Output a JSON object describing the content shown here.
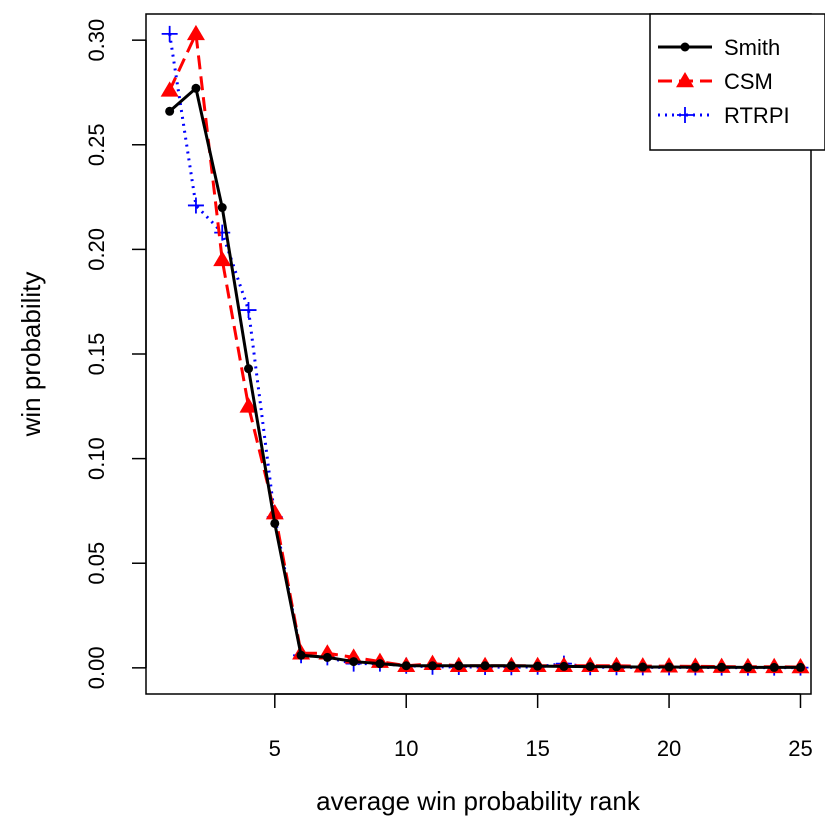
{
  "chart_data": {
    "type": "line",
    "xlabel": "average win probability rank",
    "ylabel": "win probability",
    "xlim": [
      0.1,
      25.4
    ],
    "ylim": [
      -0.0125,
      0.3125
    ],
    "x_ticks": [
      5,
      10,
      15,
      20,
      25
    ],
    "y_ticks": [
      "0.00",
      "0.05",
      "0.10",
      "0.15",
      "0.20",
      "0.25",
      "0.30"
    ],
    "grid": false,
    "legend_position": "top-right",
    "x": [
      1,
      2,
      3,
      4,
      5,
      6,
      7,
      8,
      9,
      10,
      11,
      12,
      13,
      14,
      15,
      16,
      17,
      18,
      19,
      20,
      21,
      22,
      23,
      24,
      25
    ],
    "series": [
      {
        "name": "Smith",
        "color": "#000000",
        "line_style": "solid",
        "marker": "filled-circle",
        "values": [
          0.266,
          0.277,
          0.22,
          0.143,
          0.069,
          0.006,
          0.005,
          0.003,
          0.002,
          0.001,
          0.001,
          0.001,
          0.001,
          0.001,
          0.0008,
          0.0007,
          0.0006,
          0.0005,
          0.0004,
          0.0004,
          0.0003,
          0.0003,
          0.0002,
          0.0002,
          0.0002
        ]
      },
      {
        "name": "CSM",
        "color": "#ff0000",
        "line_style": "dashed",
        "marker": "filled-triangle",
        "values": [
          0.276,
          0.303,
          0.195,
          0.125,
          0.074,
          0.007,
          0.007,
          0.005,
          0.003,
          0.001,
          0.002,
          0.001,
          0.001,
          0.001,
          0.001,
          0.001,
          0.001,
          0.001,
          0.0008,
          0.0008,
          0.0007,
          0.0006,
          0.0005,
          0.0005,
          0.0004
        ]
      },
      {
        "name": "RTRPI",
        "color": "#0000ff",
        "line_style": "dotted",
        "marker": "plus",
        "values": [
          0.303,
          0.221,
          0.208,
          0.171,
          0.072,
          0.006,
          0.005,
          0.002,
          0.002,
          0.001,
          0.0005,
          0.0004,
          0.0004,
          0.0003,
          0.0005,
          0.002,
          0.0003,
          0.0003,
          0.0002,
          0.0002,
          0.0002,
          0.0001,
          0.0001,
          0.0001,
          0.0001
        ]
      }
    ]
  }
}
